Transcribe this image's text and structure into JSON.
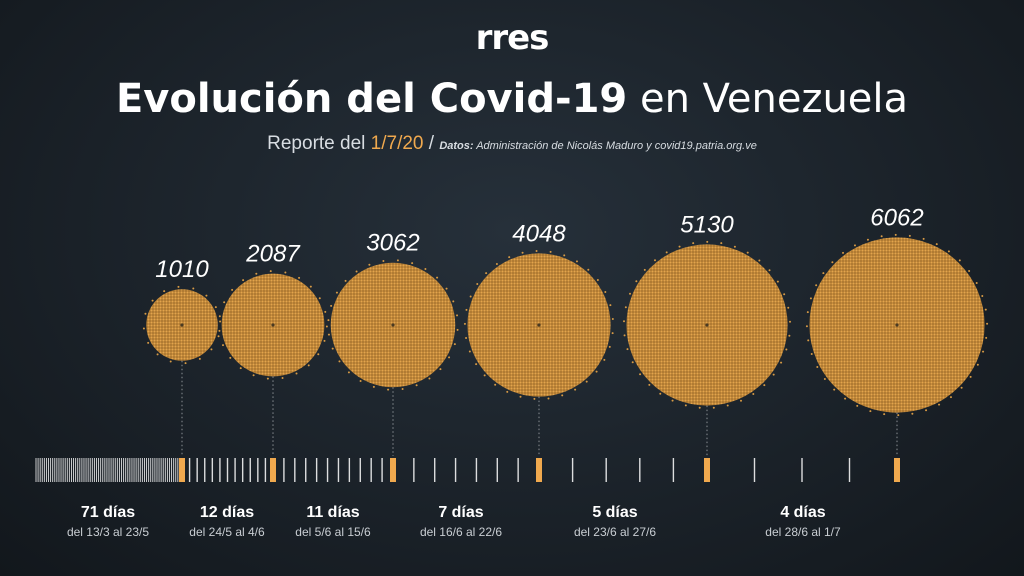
{
  "header": {
    "logo": "rres",
    "title_bold": "Evolución del Covid-19",
    "title_rest": "en Venezuela",
    "report_label": "Reporte del",
    "report_date": "1/7/20",
    "separator": "/",
    "source_label": "Datos:",
    "source_text": "Administración de Nicolás Maduro y covid19.patria.org.ve"
  },
  "colors": {
    "accent": "#f0a94e",
    "circle_fill": "#d69a45",
    "background": "#1a2128",
    "tick": "#ffffff"
  },
  "chart_data": {
    "type": "bubble-timeline",
    "milestones": [
      {
        "cases": 1010,
        "date": "23/5"
      },
      {
        "cases": 2087,
        "date": "4/6"
      },
      {
        "cases": 3062,
        "date": "15/6"
      },
      {
        "cases": 4048,
        "date": "22/6"
      },
      {
        "cases": 5130,
        "date": "27/6"
      },
      {
        "cases": 6062,
        "date": "1/7"
      }
    ],
    "periods": [
      {
        "days_label": "71 días",
        "range_label": "del 13/3 al 23/5",
        "days": 71
      },
      {
        "days_label": "12 días",
        "range_label": "del 24/5 al 4/6",
        "days": 12
      },
      {
        "days_label": "11 días",
        "range_label": "del 5/6 al 15/6",
        "days": 11
      },
      {
        "days_label": "7 días",
        "range_label": "del 16/6 al 22/6",
        "days": 7
      },
      {
        "days_label": "5 días",
        "range_label": "del 23/6 al 27/6",
        "days": 5
      },
      {
        "days_label": "4 días",
        "range_label": "del 28/6 al 1/7",
        "days": 4
      }
    ]
  }
}
